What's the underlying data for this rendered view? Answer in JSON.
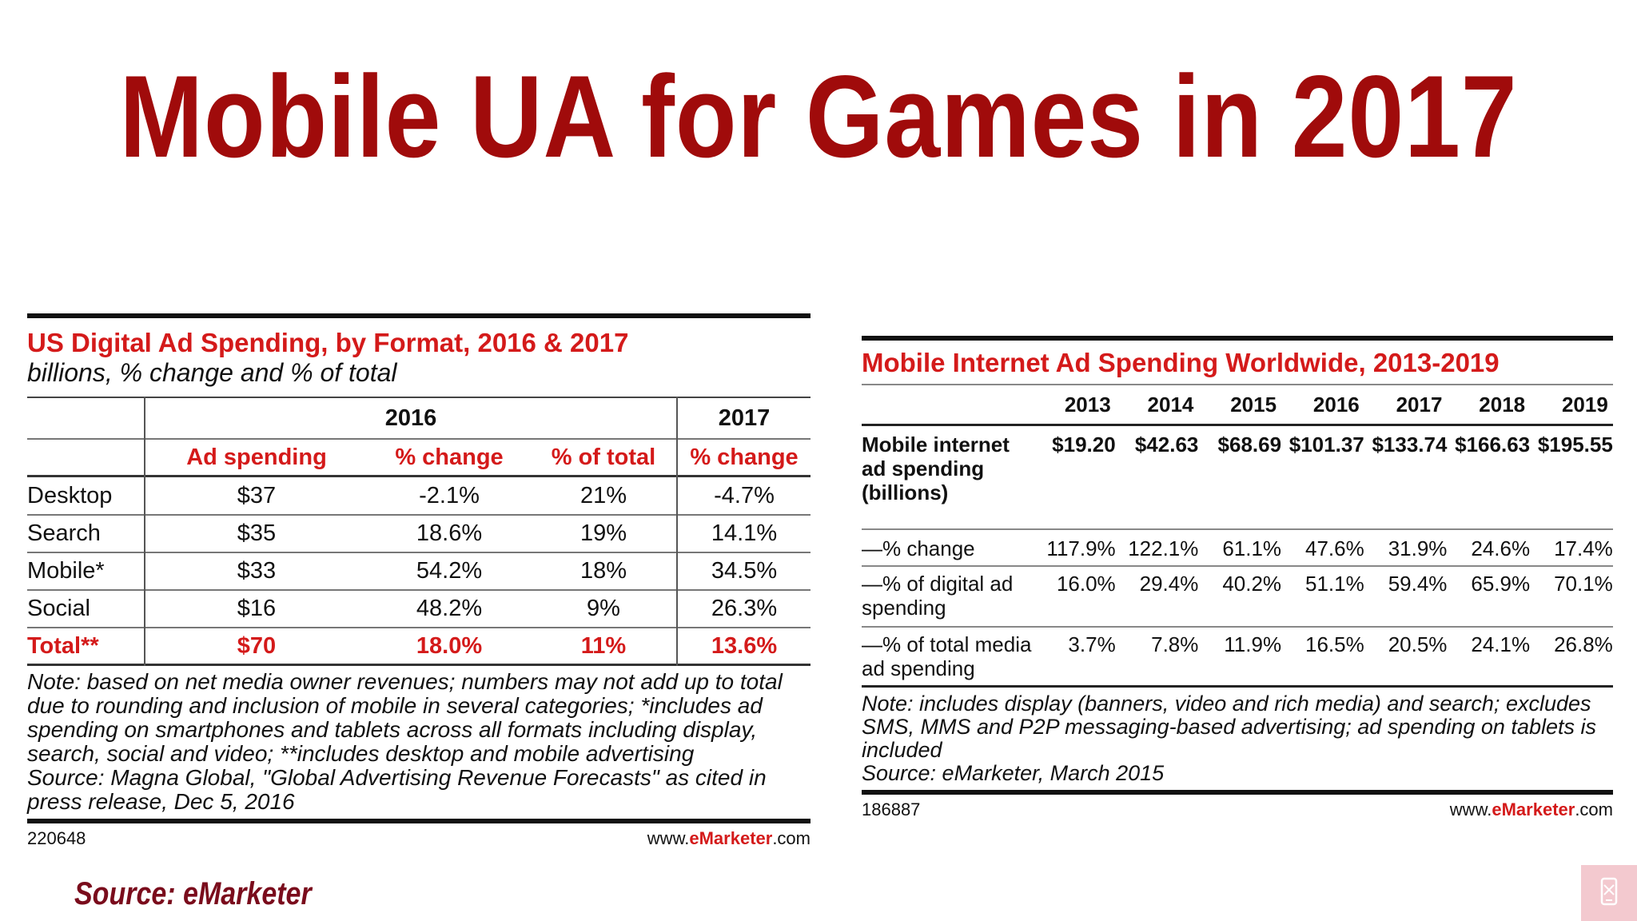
{
  "slide": {
    "title": "Mobile UA for Games in 2017",
    "source": "Source: eMarketer"
  },
  "left_table": {
    "title": "US Digital Ad Spending, by Format, 2016 & 2017",
    "subtitle": "billions, % change and % of total",
    "group_headers": [
      "2016",
      "2017"
    ],
    "columns": [
      "Ad spending",
      "% change",
      "% of total",
      "% change"
    ],
    "rows": [
      {
        "label": "Desktop",
        "values": [
          "$37",
          "-2.1%",
          "21%",
          "-4.7%"
        ]
      },
      {
        "label": "Search",
        "values": [
          "$35",
          "18.6%",
          "19%",
          "14.1%"
        ]
      },
      {
        "label": "Mobile*",
        "values": [
          "$33",
          "54.2%",
          "18%",
          "34.5%"
        ]
      },
      {
        "label": "Social",
        "values": [
          "$16",
          "48.2%",
          "9%",
          "26.3%"
        ]
      },
      {
        "label": "Total**",
        "values": [
          "$70",
          "18.0%",
          "11%",
          "13.6%"
        ]
      }
    ],
    "note": "Note: based on net media owner revenues; numbers may not add up to total due to rounding and inclusion of mobile in several categories; *includes ad spending on smartphones and tablets across all formats including display, search, social and video; **includes desktop and mobile advertising",
    "source": "Source: Magna Global, \"Global Advertising Revenue Forecasts\" as cited in press release, Dec 5, 2016",
    "id": "220648",
    "site_prefix": "www.",
    "site_brand": "eMarketer",
    "site_suffix": ".com"
  },
  "right_table": {
    "title": "Mobile Internet Ad Spending Worldwide, 2013-2019",
    "years": [
      "2013",
      "2014",
      "2015",
      "2016",
      "2017",
      "2018",
      "2019"
    ],
    "rows": [
      {
        "label": "Mobile internet ad spending (billions)",
        "bold": true,
        "values": [
          "$19.20",
          "$42.63",
          "$68.69",
          "$101.37",
          "$133.74",
          "$166.63",
          "$195.55"
        ]
      },
      {
        "label": "—% change",
        "values": [
          "117.9%",
          "122.1%",
          "61.1%",
          "47.6%",
          "31.9%",
          "24.6%",
          "17.4%"
        ]
      },
      {
        "label": "—% of digital ad spending",
        "values": [
          "16.0%",
          "29.4%",
          "40.2%",
          "51.1%",
          "59.4%",
          "65.9%",
          "70.1%"
        ]
      },
      {
        "label": "—% of total media ad spending",
        "values": [
          "3.7%",
          "7.8%",
          "11.9%",
          "16.5%",
          "20.5%",
          "24.1%",
          "26.8%"
        ]
      }
    ],
    "note": "Note: includes display (banners, video and rich media) and search; excludes SMS, MMS and P2P messaging-based advertising; ad spending on tablets is included",
    "source": "Source: eMarketer, March 2015",
    "id": "186887",
    "site_prefix": "www.",
    "site_brand": "eMarketer",
    "site_suffix": ".com"
  },
  "colors": {
    "title": "#a00b0b",
    "accent": "#d41a1a",
    "source": "#7a0c1c",
    "corner": "#f3c9cf"
  },
  "icons": {
    "corner": "mobile-phone-icon"
  }
}
